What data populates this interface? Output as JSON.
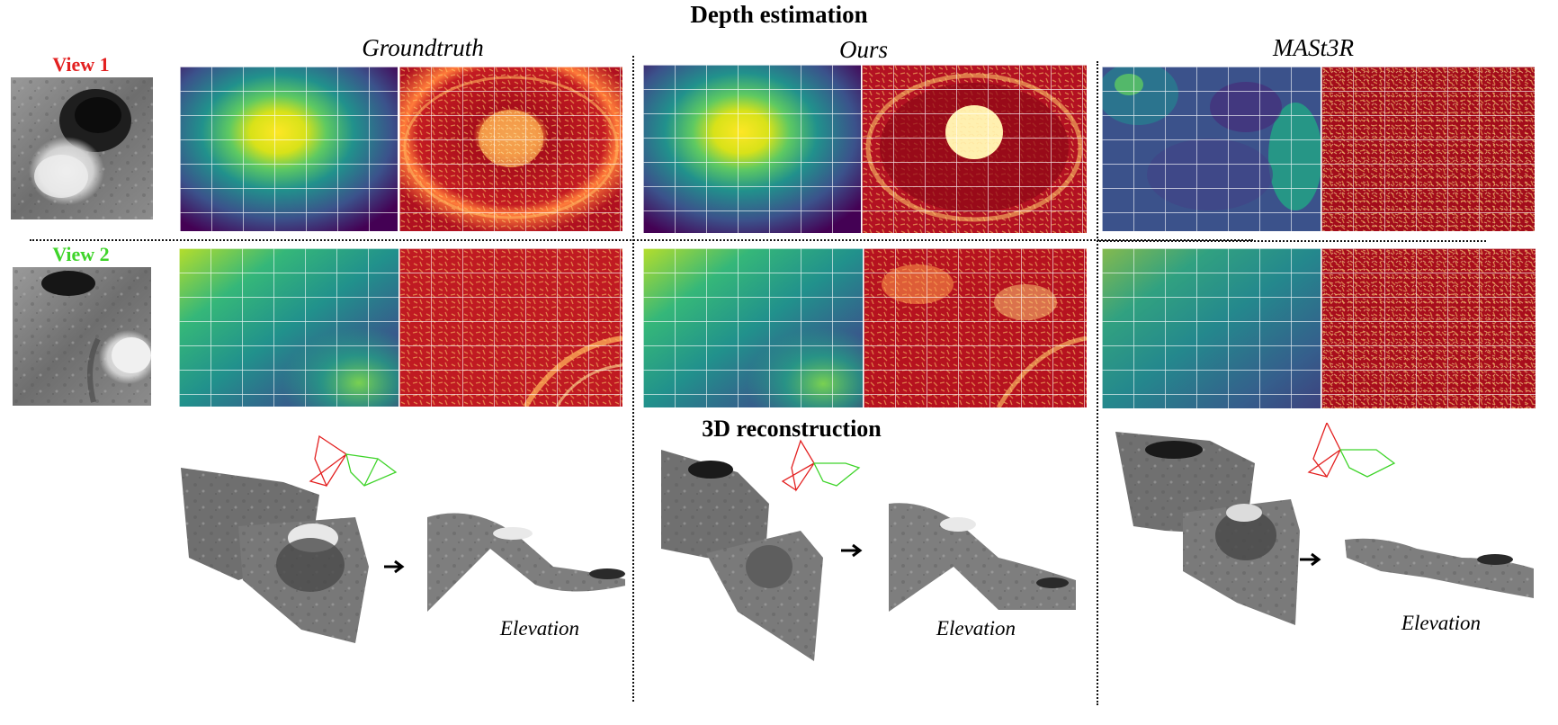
{
  "titles": {
    "depth": "Depth estimation",
    "recon": "3D reconstruction"
  },
  "methods": [
    "Groundtruth",
    "Ours",
    "MASt3R"
  ],
  "views": [
    "View 1",
    "View 2"
  ],
  "elevation_label": "Elevation",
  "colors": {
    "view1": "#e32020",
    "view2": "#3fd42a",
    "camera_red": "#e32020",
    "camera_green": "#3fd42a",
    "depth_low": "#440154",
    "depth_mid": "#21918c",
    "depth_high": "#fde725",
    "conf_low": "#9b0a16",
    "conf_high": "#ffe08a"
  },
  "panels": {
    "depth_map": "viridis depth map with white grid",
    "confidence_map": "red/yellow confidence heat map with white grid"
  }
}
